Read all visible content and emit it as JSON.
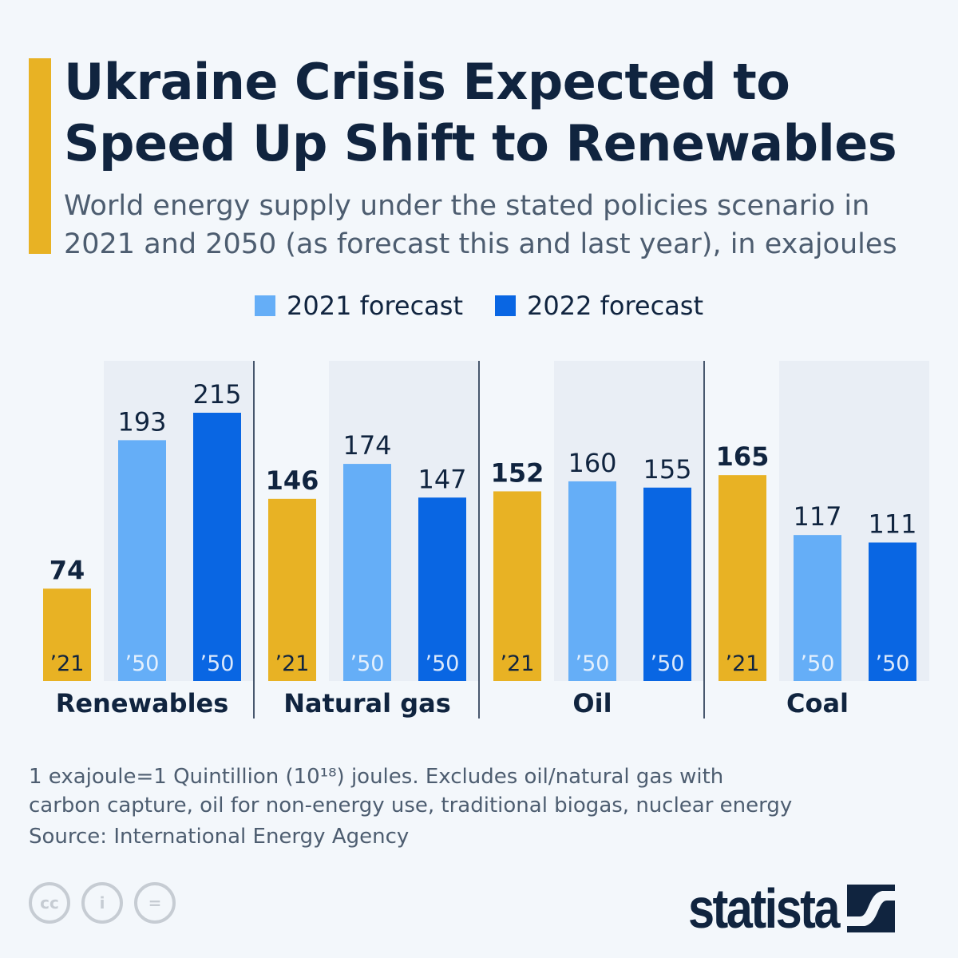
{
  "title_lines": [
    "Ukraine Crisis Expected to",
    "Speed Up Shift to Renewables"
  ],
  "subtitle_lines": [
    "World energy supply under the stated policies scenario in",
    "2021 and 2050 (as forecast this and last year), in exajoules"
  ],
  "colors": {
    "actual_2021": "#e8b224",
    "forecast_2021": "#65aef7",
    "forecast_2022": "#0966e3",
    "text": "#10243f",
    "background": "#f3f7fb"
  },
  "legend": [
    {
      "label": "2021 forecast",
      "color": "#65aef7"
    },
    {
      "label": "2022 forecast",
      "color": "#0966e3"
    }
  ],
  "chart_data": {
    "type": "bar",
    "categories": [
      "Renewables",
      "Natural gas",
      "Oil",
      "Coal"
    ],
    "bar_labels": [
      "’21",
      "’50",
      "’50"
    ],
    "series": [
      {
        "values": [
          74,
          146,
          152,
          165
        ]
      },
      {
        "name": "2021 forecast",
        "values": [
          193,
          174,
          160,
          117
        ]
      },
      {
        "name": "2022 forecast",
        "values": [
          215,
          147,
          155,
          111
        ]
      }
    ],
    "ylim": [
      0,
      215
    ],
    "grid": false,
    "legend_position": "top-center"
  },
  "footnote_lines": [
    "1 exajoule=1 Quintillion (10¹⁸) joules. Excludes oil/natural gas with",
    "carbon capture, oil for non-energy use, traditional biogas, nuclear energy"
  ],
  "source": "Source: International Energy Agency",
  "license_icons": [
    "cc-icon",
    "attribution-icon",
    "no-derivatives-icon"
  ],
  "brand": "statista"
}
